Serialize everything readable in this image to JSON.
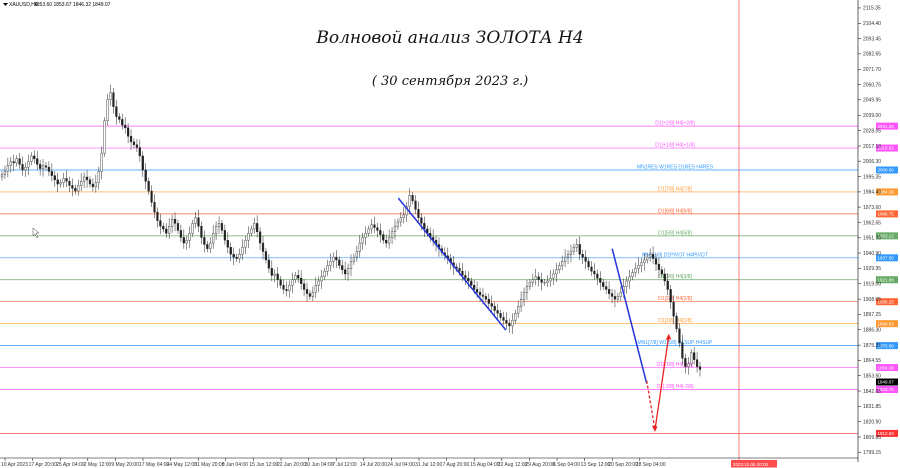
{
  "header": {
    "symbol": "XAUUSD,H4",
    "ohlc": "1853.60 1853.67 1846.32 1849.07"
  },
  "title": "Волновой анализ ЗОЛОТА H4",
  "subtitle": "( 30 сентября 2023 г.)",
  "chart_data": {
    "type": "candlestick",
    "title": "Волновой анализ ЗОЛОТА H4",
    "subtitle": "( 30 сентября 2023 г.)",
    "ylim": [
      1795,
      2121
    ],
    "y_ticks": [
      "2115.35",
      "2104.40",
      "2093.45",
      "2082.65",
      "2071.70",
      "2060.75",
      "2049.95",
      "2039.00",
      "2028.05",
      "2017.10",
      "2006.30",
      "1995.35",
      "1984.40",
      "1973.60",
      "1962.65",
      "1951.70",
      "1940.90",
      "1929.95",
      "1919.00",
      "1908.05",
      "1897.25",
      "1886.30",
      "1875.35",
      "1864.55",
      "1853.60",
      "1842.65",
      "1831.85",
      "1820.90",
      "1809.95",
      "1799.15"
    ],
    "x_ticks": [
      "10 Apr 2023",
      "17 Apr 20:00",
      "25 Apr 04:00",
      "2 May 12:00",
      "9 May 20:00",
      "17 May 04:00",
      "24 May 12:00",
      "31 May 20:00",
      "8 Jun 04:00",
      "15 Jun 12:00",
      "22 Jun 20:00",
      "30 Jun 04:00",
      "7 Jul 12:00",
      "14 Jul 20:00",
      "24 Jul 04:00",
      "31 Jul 12:00",
      "7 Aug 20:00",
      "15 Aug 04:00",
      "22 Aug 12:00",
      "29 Aug 20:00",
      "6 Sep 04:00",
      "13 Sep 12:00",
      "20 Sep 20:00",
      "28 Sep 04:00"
    ],
    "x_marker": "2023.10.06 20:00",
    "current_price": "1849.07",
    "levels": [
      {
        "label": "D1[+2/8] H4[+2/8]",
        "price": 2031.25,
        "price_label": "2031.25",
        "color": "#ff55ff"
      },
      {
        "label": "D1[+1/8] H4[+1/8]",
        "price": 2015.62,
        "price_label": "2015.62",
        "color": "#ff55ff"
      },
      {
        "label": "MN1RES W1RES D1RES H4RES",
        "price": 2000.0,
        "price_label": "2000.00",
        "color": "#3399ff"
      },
      {
        "label": "D1[7/8] H4[7/8]",
        "price": 1984.38,
        "price_label": "1984.38",
        "color": "#ff9933"
      },
      {
        "label": "D1[6/8] H4[6/8]",
        "price": 1968.75,
        "price_label": "1968.75",
        "color": "#ff6633"
      },
      {
        "label": "D1[5/8] H4[5/8]",
        "price": 1953.12,
        "price_label": "1953.12",
        "color": "#66aa66"
      },
      {
        "label": "MN1[1/8] D1PIVOT H4PIVOT",
        "price": 1937.5,
        "price_label": "1937.50",
        "color": "#3399ff"
      },
      {
        "label": "D1[3/8] H4[3/8]",
        "price": 1921.88,
        "price_label": "1921.88",
        "color": "#66aa66"
      },
      {
        "label": "D1[2/8] H4[2/8]",
        "price": 1906.25,
        "price_label": "1906.25",
        "color": "#ff6633"
      },
      {
        "label": "D1[1/8] H4[1/8]",
        "price": 1890.62,
        "price_label": "1890.62",
        "color": "#ff9933"
      },
      {
        "label": "MN1[7/8] W1[5/8] D1SUP H4SUP",
        "price": 1875.0,
        "price_label": "1875.00",
        "color": "#3399ff"
      },
      {
        "label": "D1[-1/8] H4[-1/8]",
        "price": 1859.38,
        "price_label": "1859.38",
        "color": "#ff55ff"
      },
      {
        "label": "D1[-2/8] H4[-2/8]",
        "price": 1843.75,
        "price_label": "1843.75",
        "color": "#ff55ff"
      },
      {
        "label": "",
        "price": 1812.5,
        "price_label": "1812.50",
        "color": "#ff3333"
      }
    ],
    "closes": [
      1997,
      1999,
      2003,
      2006,
      2005,
      2008,
      2004,
      2000,
      2002,
      2006,
      2010,
      2008,
      2004,
      2001,
      2003,
      2002,
      1999,
      1996,
      1993,
      1990,
      1991,
      1994,
      1992,
      1989,
      1987,
      1985,
      1989,
      1992,
      1995,
      1993,
      1990,
      1988,
      1991,
      1999,
      2012,
      2035,
      2050,
      2055,
      2045,
      2038,
      2036,
      2032,
      2030,
      2024,
      2020,
      2018,
      2016,
      2010,
      2000,
      1992,
      1985,
      1977,
      1970,
      1964,
      1960,
      1958,
      1955,
      1960,
      1965,
      1962,
      1957,
      1952,
      1948,
      1950,
      1955,
      1962,
      1966,
      1960,
      1952,
      1947,
      1944,
      1948,
      1955,
      1960,
      1962,
      1957,
      1950,
      1945,
      1940,
      1938,
      1937,
      1940,
      1945,
      1950,
      1955,
      1958,
      1962,
      1956,
      1948,
      1942,
      1936,
      1930,
      1925,
      1926,
      1922,
      1918,
      1915,
      1914,
      1918,
      1922,
      1925,
      1923,
      1919,
      1915,
      1912,
      1910,
      1913,
      1918,
      1921,
      1924,
      1928,
      1932,
      1935,
      1938,
      1936,
      1932,
      1929,
      1926,
      1930,
      1935,
      1938,
      1942,
      1948,
      1952,
      1955,
      1958,
      1961,
      1959,
      1957,
      1954,
      1950,
      1948,
      1952,
      1956,
      1960,
      1963,
      1966,
      1968,
      1974,
      1982,
      1978,
      1972,
      1966,
      1962,
      1958,
      1955,
      1952,
      1950,
      1947,
      1944,
      1941,
      1939,
      1937,
      1934,
      1931,
      1930,
      1928,
      1925,
      1923,
      1921,
      1918,
      1915,
      1913,
      1911,
      1910,
      1908,
      1905,
      1903,
      1900,
      1898,
      1895,
      1893,
      1891,
      1889,
      1893,
      1898,
      1903,
      1908,
      1913,
      1917,
      1920,
      1922,
      1924,
      1922,
      1920,
      1920,
      1921,
      1923,
      1926,
      1929,
      1932,
      1935,
      1938,
      1940,
      1942,
      1945,
      1947,
      1940,
      1938,
      1935,
      1931,
      1928,
      1926,
      1923,
      1920,
      1917,
      1915,
      1912,
      1910,
      1908,
      1910,
      1913,
      1917,
      1921,
      1924,
      1927,
      1930,
      1932,
      1934,
      1936,
      1938,
      1940,
      1937,
      1933,
      1929,
      1926,
      1921,
      1915,
      1906,
      1896,
      1887,
      1877,
      1866,
      1860,
      1862,
      1870,
      1865,
      1860,
      1858
    ],
    "annotations": {
      "blue_lines": [
        {
          "from": [
            14.25,
            1980
          ],
          "to": [
            18.15,
            1886
          ]
        },
        {
          "from": [
            22.0,
            1944
          ],
          "to": [
            23.25,
            1848
          ]
        }
      ],
      "red_forecast": {
        "points": [
          [
            23.25,
            1850
          ],
          [
            23.55,
            1815
          ],
          [
            24.05,
            1882
          ]
        ],
        "dashed_until": 1
      }
    }
  }
}
